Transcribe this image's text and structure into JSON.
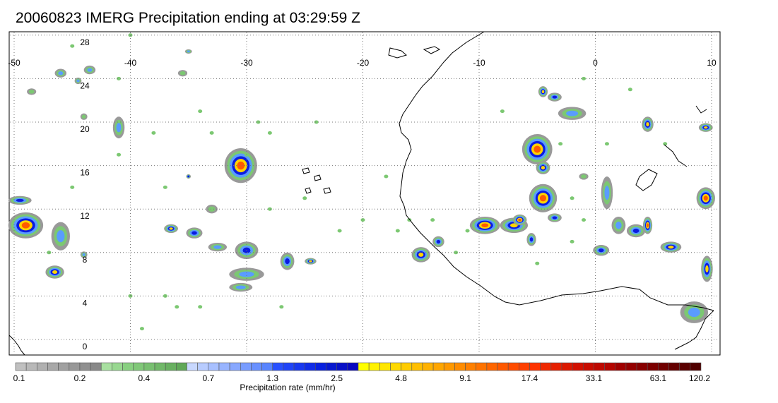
{
  "title": "20060823 IMERG Precipitation ending at 03:29:59 Z",
  "map": {
    "lon_range": [
      -50,
      10
    ],
    "lat_range": [
      -0.5,
      29
    ],
    "lon_ticks": [
      "-50",
      "-40",
      "-30",
      "-20",
      "-10",
      "0",
      "10"
    ],
    "lat_ticks": [
      "0",
      "4",
      "8",
      "12",
      "16",
      "20",
      "24",
      "28"
    ],
    "gridlines": "dotted"
  },
  "colorbar": {
    "label": "Precipitation rate (mm/hr)",
    "tick_labels": [
      "0.1",
      "0.2",
      "0.4",
      "0.7",
      "1.3",
      "2.5",
      "4.8",
      "9.1",
      "17.4",
      "33.1",
      "63.1",
      "120.2"
    ],
    "colors": [
      "#c0c0c0",
      "#b8b8b8",
      "#b0b0b0",
      "#a8a8a8",
      "#a0a0a0",
      "#989898",
      "#909090",
      "#888888",
      "#a8e0a0",
      "#98d890",
      "#88d080",
      "#80c878",
      "#78c070",
      "#70b868",
      "#68b060",
      "#60a858",
      "#c8d8ff",
      "#b8ccff",
      "#a8c0ff",
      "#98b4ff",
      "#88a8ff",
      "#789cff",
      "#6890ff",
      "#5884ff",
      "#2850ff",
      "#2044f8",
      "#1838f0",
      "#102ce8",
      "#0820e0",
      "#0818d0",
      "#0810c8",
      "#0808c0",
      "#ffff00",
      "#fff200",
      "#ffe600",
      "#ffd900",
      "#ffcc00",
      "#ffbf00",
      "#ffb200",
      "#ffa600",
      "#ff9900",
      "#ff8c00",
      "#ff8000",
      "#ff7300",
      "#ff6600",
      "#ff5900",
      "#ff4c00",
      "#ff4000",
      "#ff3300",
      "#f02800",
      "#e62000",
      "#dc1800",
      "#d21000",
      "#c80c00",
      "#be0800",
      "#b40400",
      "#a00000",
      "#940000",
      "#880000",
      "#7c0000",
      "#700000",
      "#640000",
      "#5a0000",
      "#500000"
    ]
  },
  "cells": [
    {
      "lon": -30.5,
      "lat": 16.0,
      "rx": 1.4,
      "ry": 1.6,
      "max": 4
    },
    {
      "lon": -49.0,
      "lat": 10.5,
      "rx": 1.5,
      "ry": 1.2,
      "max": 4
    },
    {
      "lon": -49.5,
      "lat": 12.8,
      "rx": 1.0,
      "ry": 0.4,
      "max": 2
    },
    {
      "lon": -46.0,
      "lat": 9.5,
      "rx": 0.8,
      "ry": 1.3,
      "max": 1
    },
    {
      "lon": -46.5,
      "lat": 6.2,
      "rx": 0.8,
      "ry": 0.6,
      "max": 3
    },
    {
      "lon": -44.0,
      "lat": 7.8,
      "rx": 0.3,
      "ry": 0.3,
      "max": 1
    },
    {
      "lon": -46.0,
      "lat": 24.5,
      "rx": 0.5,
      "ry": 0.4,
      "max": 1
    },
    {
      "lon": -43.5,
      "lat": 24.8,
      "rx": 0.5,
      "ry": 0.4,
      "max": 1
    },
    {
      "lon": -44.5,
      "lat": 23.8,
      "rx": 0.3,
      "ry": 0.3,
      "max": 1
    },
    {
      "lon": -48.5,
      "lat": 22.8,
      "rx": 0.4,
      "ry": 0.3,
      "max": 0
    },
    {
      "lon": -44.0,
      "lat": 20.5,
      "rx": 0.3,
      "ry": 0.3,
      "max": 0
    },
    {
      "lon": -41.0,
      "lat": 19.5,
      "rx": 0.5,
      "ry": 1.0,
      "max": 1
    },
    {
      "lon": -36.5,
      "lat": 10.2,
      "rx": 0.6,
      "ry": 0.4,
      "max": 3
    },
    {
      "lon": -34.5,
      "lat": 9.8,
      "rx": 0.7,
      "ry": 0.5,
      "max": 2
    },
    {
      "lon": -32.5,
      "lat": 8.5,
      "rx": 0.8,
      "ry": 0.4,
      "max": 1
    },
    {
      "lon": -30.0,
      "lat": 8.2,
      "rx": 1.0,
      "ry": 0.8,
      "max": 2
    },
    {
      "lon": -30.0,
      "lat": 6.0,
      "rx": 1.5,
      "ry": 0.6,
      "max": 1
    },
    {
      "lon": -30.5,
      "lat": 4.8,
      "rx": 1.0,
      "ry": 0.4,
      "max": 1
    },
    {
      "lon": -26.5,
      "lat": 7.2,
      "rx": 0.6,
      "ry": 0.8,
      "max": 2
    },
    {
      "lon": -24.5,
      "lat": 7.2,
      "rx": 0.5,
      "ry": 0.3,
      "max": 3
    },
    {
      "lon": -33.0,
      "lat": 12.0,
      "rx": 0.5,
      "ry": 0.4,
      "max": 0
    },
    {
      "lon": -35.0,
      "lat": 15.0,
      "rx": 0.2,
      "ry": 0.2,
      "max": 2
    },
    {
      "lon": -35.5,
      "lat": 24.5,
      "rx": 0.4,
      "ry": 0.3,
      "max": 0
    },
    {
      "lon": -35.0,
      "lat": 26.5,
      "rx": 0.3,
      "ry": 0.2,
      "max": 1
    },
    {
      "lon": -5.0,
      "lat": 17.5,
      "rx": 1.3,
      "ry": 1.4,
      "max": 4
    },
    {
      "lon": -4.5,
      "lat": 15.8,
      "rx": 0.6,
      "ry": 0.6,
      "max": 3
    },
    {
      "lon": -4.5,
      "lat": 13.0,
      "rx": 1.2,
      "ry": 1.3,
      "max": 4
    },
    {
      "lon": -9.5,
      "lat": 10.5,
      "rx": 1.3,
      "ry": 0.8,
      "max": 4
    },
    {
      "lon": -7.0,
      "lat": 10.5,
      "rx": 1.2,
      "ry": 0.7,
      "max": 3
    },
    {
      "lon": -6.5,
      "lat": 11.0,
      "rx": 0.6,
      "ry": 0.5,
      "max": 4
    },
    {
      "lon": -5.5,
      "lat": 9.2,
      "rx": 0.4,
      "ry": 0.6,
      "max": 2
    },
    {
      "lon": -3.5,
      "lat": 11.2,
      "rx": 0.6,
      "ry": 0.4,
      "max": 2
    },
    {
      "lon": -4.5,
      "lat": 22.8,
      "rx": 0.4,
      "ry": 0.5,
      "max": 3
    },
    {
      "lon": -3.5,
      "lat": 22.3,
      "rx": 0.6,
      "ry": 0.4,
      "max": 2
    },
    {
      "lon": -2.0,
      "lat": 20.8,
      "rx": 1.2,
      "ry": 0.6,
      "max": 1
    },
    {
      "lon": -15.0,
      "lat": 7.8,
      "rx": 0.8,
      "ry": 0.7,
      "max": 3
    },
    {
      "lon": -13.5,
      "lat": 9.0,
      "rx": 0.5,
      "ry": 0.5,
      "max": 2
    },
    {
      "lon": 0.5,
      "lat": 8.2,
      "rx": 0.7,
      "ry": 0.5,
      "max": 2
    },
    {
      "lon": 1.0,
      "lat": 13.5,
      "rx": 0.5,
      "ry": 1.5,
      "max": 1
    },
    {
      "lon": 2.0,
      "lat": 10.5,
      "rx": 0.6,
      "ry": 0.8,
      "max": 1
    },
    {
      "lon": 3.5,
      "lat": 10.0,
      "rx": 0.8,
      "ry": 0.6,
      "max": 2
    },
    {
      "lon": 4.5,
      "lat": 10.5,
      "rx": 0.4,
      "ry": 0.8,
      "max": 4
    },
    {
      "lon": 6.5,
      "lat": 8.5,
      "rx": 0.9,
      "ry": 0.5,
      "max": 3
    },
    {
      "lon": 9.5,
      "lat": 13.0,
      "rx": 0.8,
      "ry": 1.0,
      "max": 4
    },
    {
      "lon": 9.6,
      "lat": 6.5,
      "rx": 0.5,
      "ry": 1.2,
      "max": 3
    },
    {
      "lon": 9.5,
      "lat": 19.5,
      "rx": 0.6,
      "ry": 0.4,
      "max": 3
    },
    {
      "lon": 4.5,
      "lat": 19.8,
      "rx": 0.5,
      "ry": 0.7,
      "max": 3
    },
    {
      "lon": 8.5,
      "lat": 2.5,
      "rx": 1.2,
      "ry": 1.0,
      "max": 1
    },
    {
      "lon": -1.0,
      "lat": 15.0,
      "rx": 0.4,
      "ry": 0.3,
      "max": 0
    }
  ],
  "scatter": [
    [
      -47,
      8
    ],
    [
      -41,
      17
    ],
    [
      -37,
      14
    ],
    [
      -33,
      19
    ],
    [
      -28,
      19
    ],
    [
      -25,
      13
    ],
    [
      -22,
      10
    ],
    [
      -40,
      4
    ],
    [
      -37,
      4
    ],
    [
      -27,
      3
    ],
    [
      -20,
      11
    ],
    [
      -18,
      15
    ],
    [
      -17,
      10
    ],
    [
      -16,
      11
    ],
    [
      -14,
      11
    ],
    [
      -12,
      8
    ],
    [
      -8,
      21
    ],
    [
      -1,
      24
    ],
    [
      3,
      23
    ],
    [
      6,
      18
    ],
    [
      -3,
      18
    ],
    [
      -2,
      13
    ],
    [
      -1,
      11
    ],
    [
      -5,
      7
    ],
    [
      -39,
      1
    ],
    [
      -45,
      14
    ],
    [
      -45,
      27
    ],
    [
      -40,
      28
    ],
    [
      -29,
      20
    ],
    [
      -36,
      3
    ],
    [
      -34,
      3
    ],
    [
      1,
      18
    ],
    [
      -2,
      9
    ],
    [
      -11,
      10
    ],
    [
      -30,
      17
    ],
    [
      -38,
      19
    ],
    [
      -41,
      24
    ],
    [
      -34,
      21
    ],
    [
      -24,
      20
    ],
    [
      -28,
      12
    ]
  ]
}
